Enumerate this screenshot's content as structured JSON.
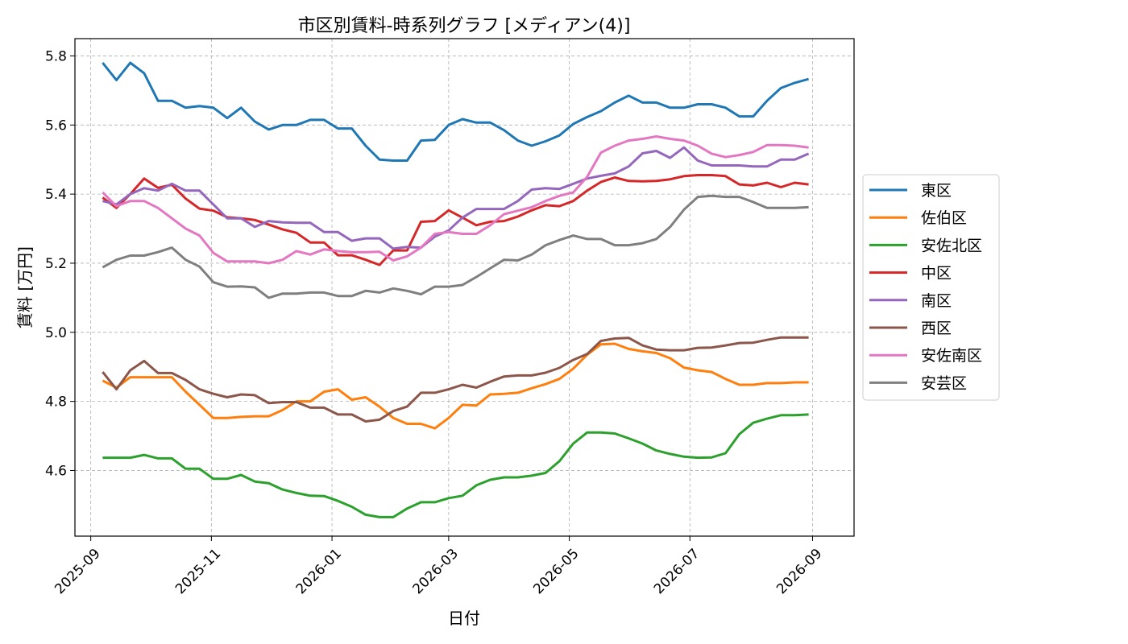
{
  "chart_data": {
    "type": "line",
    "title": "市区別賃料-時系列グラフ [メディアン(4)]",
    "xlabel": "日付",
    "ylabel": "賃料 [万円]",
    "xlim": [
      "2025-08-24",
      "2026-09-22"
    ],
    "ylim": [
      4.41,
      5.85
    ],
    "x_ticks": [
      "2025-09-01",
      "2025-11-01",
      "2026-01-01",
      "2026-03-01",
      "2026-05-01",
      "2026-07-01",
      "2026-09-01"
    ],
    "x_tick_labels": [
      "2025-09",
      "2025-11",
      "2026-01",
      "2026-03",
      "2026-05",
      "2026-07",
      "2026-09"
    ],
    "y_ticks": [
      4.6,
      4.8,
      5.0,
      5.2,
      5.4,
      5.6,
      5.8
    ],
    "y_tick_labels": [
      "4.6",
      "4.8",
      "5.0",
      "5.2",
      "5.4",
      "5.6",
      "5.8"
    ],
    "grid": true,
    "legend_position": "outside-right",
    "x_start": "2025-09-07",
    "x_step_days": 7,
    "series": [
      {
        "name": "東区",
        "color": "#1f77b4",
        "values": [
          5.78,
          5.73,
          5.78,
          5.75,
          5.67,
          5.67,
          5.65,
          5.655,
          5.65,
          5.62,
          5.65,
          5.61,
          5.587,
          5.6,
          5.6,
          5.615,
          5.615,
          5.59,
          5.59,
          5.54,
          5.5,
          5.497,
          5.497,
          5.555,
          5.557,
          5.6,
          5.617,
          5.607,
          5.607,
          5.585,
          5.555,
          5.54,
          5.553,
          5.57,
          5.603,
          5.623,
          5.64,
          5.665,
          5.685,
          5.665,
          5.665,
          5.65,
          5.65,
          5.66,
          5.66,
          5.65,
          5.625,
          5.625,
          5.67,
          5.707,
          5.722,
          5.733
        ]
      },
      {
        "name": "佐伯区",
        "color": "#ff7f0e",
        "values": [
          4.86,
          4.84,
          4.87,
          4.87,
          4.87,
          4.87,
          4.828,
          4.79,
          4.752,
          4.752,
          4.755,
          4.757,
          4.757,
          4.775,
          4.8,
          4.8,
          4.828,
          4.835,
          4.805,
          4.812,
          4.785,
          4.752,
          4.735,
          4.735,
          4.722,
          4.752,
          4.79,
          4.788,
          4.82,
          4.822,
          4.825,
          4.838,
          4.85,
          4.865,
          4.895,
          4.935,
          4.965,
          4.967,
          4.952,
          4.945,
          4.94,
          4.925,
          4.898,
          4.89,
          4.885,
          4.865,
          4.848,
          4.848,
          4.853,
          4.853,
          4.855,
          4.855
        ]
      },
      {
        "name": "安佐北区",
        "color": "#2ca02c",
        "values": [
          4.637,
          4.637,
          4.637,
          4.645,
          4.635,
          4.635,
          4.605,
          4.605,
          4.576,
          4.576,
          4.587,
          4.568,
          4.563,
          4.545,
          4.535,
          4.527,
          4.526,
          4.512,
          4.495,
          4.472,
          4.465,
          4.465,
          4.49,
          4.508,
          4.508,
          4.52,
          4.527,
          4.557,
          4.573,
          4.58,
          4.58,
          4.585,
          4.593,
          4.627,
          4.678,
          4.71,
          4.71,
          4.707,
          4.693,
          4.678,
          4.658,
          4.648,
          4.64,
          4.637,
          4.638,
          4.65,
          4.705,
          4.738,
          4.75,
          4.76,
          4.76,
          4.762
        ]
      },
      {
        "name": "中区",
        "color": "#d62728",
        "values": [
          5.39,
          5.36,
          5.4,
          5.445,
          5.418,
          5.427,
          5.387,
          5.358,
          5.352,
          5.333,
          5.33,
          5.325,
          5.312,
          5.298,
          5.288,
          5.26,
          5.26,
          5.223,
          5.223,
          5.21,
          5.195,
          5.237,
          5.237,
          5.32,
          5.322,
          5.353,
          5.332,
          5.31,
          5.32,
          5.322,
          5.335,
          5.353,
          5.368,
          5.365,
          5.38,
          5.41,
          5.435,
          5.448,
          5.438,
          5.437,
          5.438,
          5.443,
          5.452,
          5.455,
          5.455,
          5.452,
          5.428,
          5.425,
          5.433,
          5.42,
          5.433,
          5.428
        ]
      },
      {
        "name": "南区",
        "color": "#9467bd",
        "values": [
          5.38,
          5.37,
          5.4,
          5.417,
          5.41,
          5.43,
          5.41,
          5.41,
          5.37,
          5.33,
          5.33,
          5.305,
          5.322,
          5.318,
          5.317,
          5.317,
          5.29,
          5.29,
          5.265,
          5.272,
          5.272,
          5.242,
          5.247,
          5.245,
          5.277,
          5.295,
          5.332,
          5.357,
          5.357,
          5.357,
          5.38,
          5.413,
          5.417,
          5.415,
          5.43,
          5.445,
          5.453,
          5.46,
          5.48,
          5.518,
          5.525,
          5.505,
          5.535,
          5.497,
          5.483,
          5.483,
          5.483,
          5.48,
          5.48,
          5.5,
          5.5,
          5.517
        ]
      },
      {
        "name": "西区",
        "color": "#8c564b",
        "values": [
          4.885,
          4.835,
          4.89,
          4.917,
          4.882,
          4.882,
          4.862,
          4.835,
          4.822,
          4.812,
          4.82,
          4.818,
          4.795,
          4.798,
          4.798,
          4.782,
          4.782,
          4.762,
          4.762,
          4.742,
          4.747,
          4.772,
          4.785,
          4.825,
          4.825,
          4.835,
          4.848,
          4.84,
          4.857,
          4.872,
          4.875,
          4.875,
          4.883,
          4.897,
          4.92,
          4.937,
          4.975,
          4.982,
          4.984,
          4.962,
          4.95,
          4.948,
          4.948,
          4.955,
          4.956,
          4.962,
          4.969,
          4.97,
          4.978,
          4.985,
          4.985,
          4.985
        ]
      },
      {
        "name": "安佐南区",
        "color": "#e377c2",
        "values": [
          5.405,
          5.365,
          5.38,
          5.38,
          5.36,
          5.33,
          5.3,
          5.28,
          5.23,
          5.205,
          5.205,
          5.205,
          5.2,
          5.21,
          5.235,
          5.225,
          5.24,
          5.235,
          5.232,
          5.232,
          5.233,
          5.208,
          5.22,
          5.245,
          5.285,
          5.29,
          5.285,
          5.285,
          5.31,
          5.342,
          5.352,
          5.362,
          5.38,
          5.395,
          5.405,
          5.45,
          5.52,
          5.54,
          5.555,
          5.56,
          5.567,
          5.56,
          5.555,
          5.54,
          5.517,
          5.507,
          5.513,
          5.522,
          5.542,
          5.542,
          5.54,
          5.535
        ]
      },
      {
        "name": "安芸区",
        "color": "#7f7f7f",
        "values": [
          5.188,
          5.21,
          5.222,
          5.222,
          5.232,
          5.245,
          5.21,
          5.19,
          5.145,
          5.132,
          5.133,
          5.13,
          5.1,
          5.112,
          5.112,
          5.115,
          5.115,
          5.105,
          5.105,
          5.12,
          5.115,
          5.127,
          5.12,
          5.11,
          5.132,
          5.132,
          5.137,
          5.16,
          5.185,
          5.21,
          5.208,
          5.225,
          5.252,
          5.267,
          5.28,
          5.27,
          5.27,
          5.252,
          5.252,
          5.258,
          5.27,
          5.305,
          5.355,
          5.392,
          5.395,
          5.392,
          5.392,
          5.377,
          5.36,
          5.36,
          5.36,
          5.362
        ]
      }
    ]
  }
}
